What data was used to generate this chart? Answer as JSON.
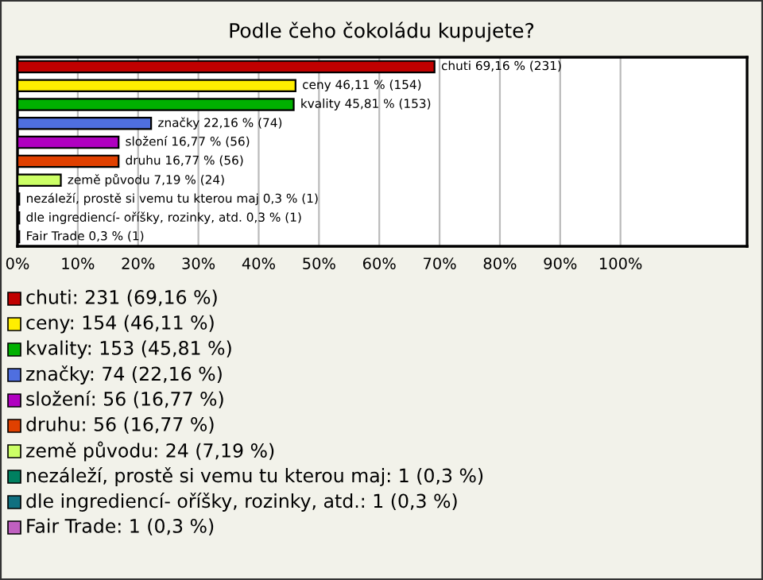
{
  "chart_data": {
    "type": "bar",
    "orientation": "horizontal",
    "title": "Podle čeho čokoládu kupujete?",
    "categories": [
      null,
      null,
      null,
      null,
      null,
      null,
      null,
      null,
      null,
      null
    ],
    "values": [
      69.16,
      46.11,
      45.81,
      22.16,
      16.77,
      16.77,
      7.19,
      0.3,
      0.3,
      0.3
    ],
    "colors": [
      "#c00000",
      "#ffee00",
      "#00b000",
      "#4f6fe0",
      "#b000c0",
      "#e04000",
      "#ccff66",
      "#008060",
      "#107080",
      "#c060c0"
    ],
    "value_labels": [
      "chuti 69,16 % (231)",
      "ceny 46,11 % (154)",
      "kvality 45,81 % (153)",
      "značky 22,16 % (74)",
      "složení 16,77 % (56)",
      "druhu 16,77 % (56)",
      "země původu 7,19 % (24)",
      "nezáleží, prostě si vemu tu kterou maj 0,3 % (1)",
      "dle ingrediencí- oříšky, rozinky, atd. 0,3 % (1)",
      "Fair Trade 0,3 % (1)"
    ],
    "xlim": [
      0,
      121
    ],
    "xticks": [
      {
        "value": 0,
        "label": "0%"
      },
      {
        "value": 10,
        "label": "10%"
      },
      {
        "value": 20,
        "label": "20%"
      },
      {
        "value": 30,
        "label": "30%"
      },
      {
        "value": 40,
        "label": "40%"
      },
      {
        "value": 50,
        "label": "50%"
      },
      {
        "value": 60,
        "label": "60%"
      },
      {
        "value": 70,
        "label": "70%"
      },
      {
        "value": 80,
        "label": "80%"
      },
      {
        "value": 90,
        "label": "90%"
      },
      {
        "value": 100,
        "label": "100%"
      }
    ],
    "grid": "x",
    "annotations": [
      "chuti: 231 (69,16 %)",
      "ceny: 154 (46,11 %)",
      "kvality: 153 (45,81 %)",
      "značky: 74 (22,16 %)",
      "složení: 56 (16,77 %)",
      "druhu: 56 (16,77 %)",
      "země původu: 24 (7,19 %)",
      "nezáleží, prostě si vemu tu kterou maj: 1 (0,3 %)",
      "dle ingrediencí- oříšky, rozinky, atd.: 1 (0,3 %)",
      "Fair Trade: 1 (0,3 %)"
    ]
  }
}
